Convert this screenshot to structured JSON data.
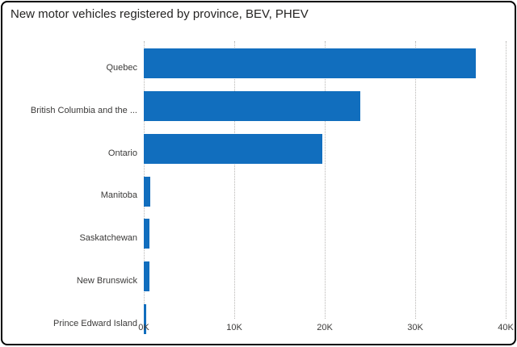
{
  "card": {
    "title": "New motor vehicles registered by province, BEV, PHEV"
  },
  "chart_data": {
    "type": "bar",
    "orientation": "horizontal",
    "title": "New motor vehicles registered by province, BEV, PHEV",
    "categories": [
      "Quebec",
      "British Columbia and the ...",
      "Ontario",
      "Manitoba",
      "Saskatchewan",
      "New Brunswick",
      "Prince Edward Island"
    ],
    "values": [
      36700,
      23900,
      19700,
      700,
      600,
      600,
      300
    ],
    "xlabel": "",
    "ylabel": "",
    "xlim": [
      0,
      40000
    ],
    "x_ticks": [
      {
        "value": 0,
        "label": "0K"
      },
      {
        "value": 10000,
        "label": "10K"
      },
      {
        "value": 20000,
        "label": "20K"
      },
      {
        "value": 30000,
        "label": "30K"
      },
      {
        "value": 40000,
        "label": "40K"
      }
    ],
    "legend": "none",
    "grid": "vertical-dotted",
    "bar_color": "#116EBE",
    "gridline_color": "#b8b6b4",
    "text_color": "#3b3a39",
    "title_color": "#252423",
    "card_border_color": "#000000",
    "background_color": "#ffffff"
  }
}
